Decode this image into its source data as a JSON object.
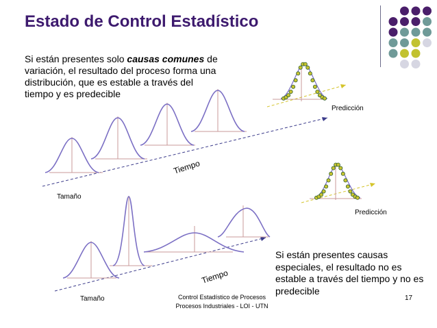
{
  "header": {
    "title": "Estado de Control Estadístico"
  },
  "top_section": {
    "text_before": "Si están presentes solo ",
    "text_emphasis": "causas comunes",
    "text_after": " de variación, el resultado del proceso forma una distribución, que es estable a través del tiempo y es predecible",
    "axis_time_label": "Tiempo",
    "axis_size_label": "Tamaño",
    "prediction_label": "Predicción"
  },
  "bottom_section": {
    "text": "Si están presentes causas especiales, el resultado no es estable a través del tiempo y no es predecible",
    "axis_time_label": "Tiempo",
    "axis_size_label": "Tamaño",
    "prediction_label": "Predicción"
  },
  "footer": {
    "line1": "Control Estadístico de Procesos",
    "line2": "Procesos Industriales - LOI - UTN",
    "page_number": "17"
  },
  "colors": {
    "title": "#3d1a6e",
    "curve": "#7b6fc4",
    "axis": "#c89a9a",
    "dashed_line": "#3a3a8a",
    "prediction_line": "#d4c42a",
    "dot_fill": "#c9c430",
    "dot_stroke": "#2f5f2f",
    "deco_purple": "#4a1e6a",
    "deco_teal": "#6f9a98",
    "deco_olive": "#c2c230",
    "deco_light": "#d6d6e2"
  }
}
